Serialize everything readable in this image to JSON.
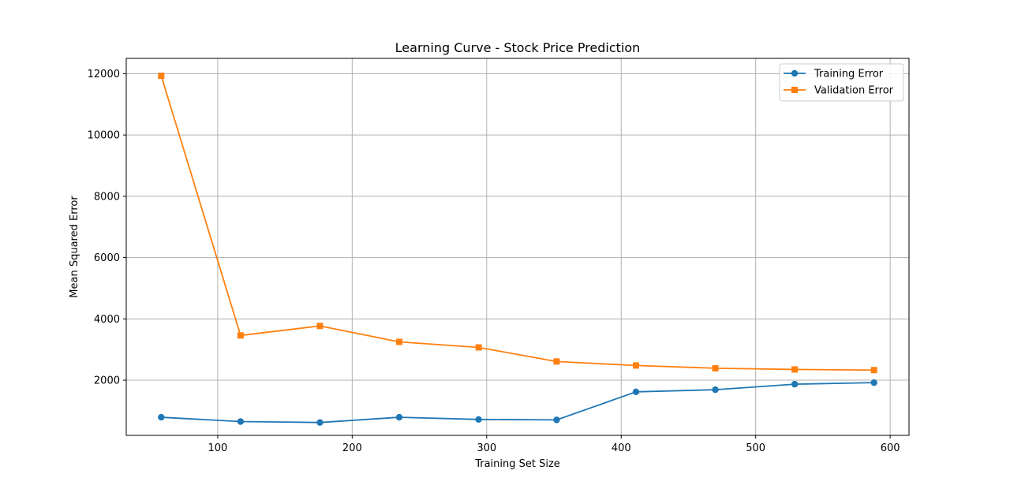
{
  "chart_data": {
    "type": "line",
    "title": "Learning Curve - Stock Price Prediction",
    "xlabel": "Training Set Size",
    "ylabel": "Mean Squared Error",
    "xlim": [
      32,
      614
    ],
    "ylim": [
      200,
      12500
    ],
    "xticks": [
      100,
      200,
      300,
      400,
      500,
      600
    ],
    "yticks": [
      2000,
      4000,
      6000,
      8000,
      10000,
      12000
    ],
    "grid": true,
    "legend_position": "top-right",
    "x": [
      58,
      117,
      176,
      235,
      294,
      352,
      411,
      470,
      529,
      588
    ],
    "series": [
      {
        "name": "Training Error",
        "color": "#1f77b4",
        "marker": "circle",
        "values": [
          790,
          650,
          620,
          790,
          720,
          705,
          1620,
          1690,
          1870,
          1920
        ]
      },
      {
        "name": "Validation Error",
        "color": "#ff7f0e",
        "marker": "square",
        "values": [
          11930,
          3460,
          3770,
          3250,
          3070,
          2610,
          2480,
          2390,
          2350,
          2330
        ]
      }
    ]
  }
}
